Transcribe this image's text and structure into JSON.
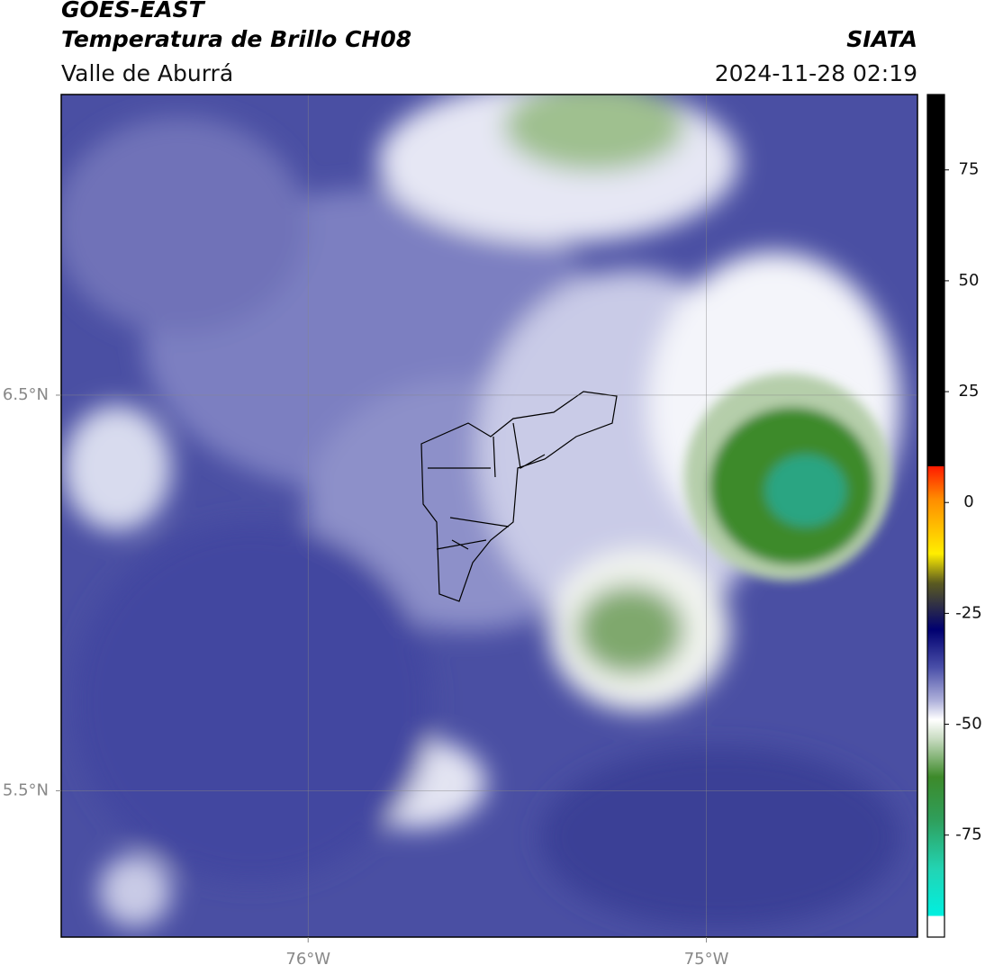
{
  "header": {
    "title": "GOES-EAST",
    "subtitle": "Temperatura de Brillo CH08",
    "agency": "SIATA",
    "region": "Valle de Aburrá",
    "timestamp": "2024-11-28 02:19"
  },
  "map": {
    "xlim": [
      -76.62,
      -74.47
    ],
    "ylim": [
      5.13,
      7.26
    ],
    "xticks": [
      {
        "value": -76,
        "label": "76°W"
      },
      {
        "value": -75,
        "label": "75°W"
      }
    ],
    "yticks": [
      {
        "value": 6.5,
        "label": "6.5°N"
      },
      {
        "value": 5.5,
        "label": "5.5°N"
      }
    ],
    "grid": true
  },
  "colorbar": {
    "lim": [
      -98,
      92
    ],
    "ticks": [
      75,
      50,
      25,
      0,
      -25,
      -50,
      -75
    ]
  }
}
